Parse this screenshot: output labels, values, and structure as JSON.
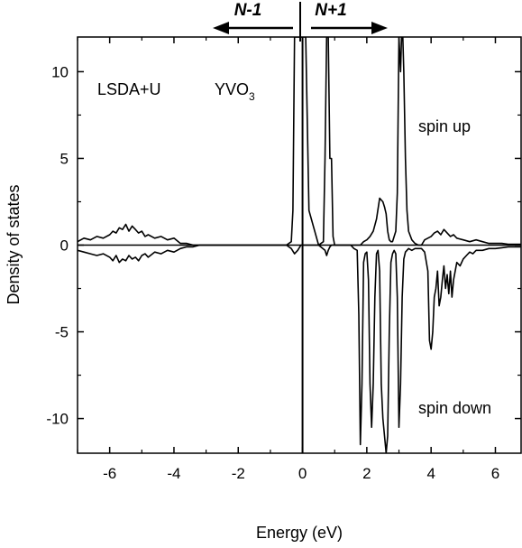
{
  "chart_data": {
    "type": "line",
    "xlabel": "Energy (eV)",
    "ylabel": "Density of states",
    "xlim": [
      -7,
      6.8
    ],
    "ylim": [
      -12,
      12
    ],
    "x_ticks": [
      -6,
      -4,
      -2,
      0,
      2,
      4,
      6
    ],
    "y_ticks": [
      -10,
      -5,
      0,
      5,
      10
    ],
    "x_tick_labels": [
      "-6",
      "-4",
      "-2",
      "0",
      "2",
      "4",
      "6"
    ],
    "y_tick_labels": [
      "-10",
      "-5",
      "0",
      "5",
      "10"
    ],
    "fermi_level": 0,
    "annotations": {
      "method": "LSDA+U",
      "compound": "YVO",
      "compound_subscript": "3",
      "spin_up": "spin up",
      "spin_down": "spin down"
    },
    "header": {
      "left": "N-1",
      "right": "N+1"
    },
    "series": [
      {
        "x": [
          -7.0,
          -6.8,
          -6.6,
          -6.4,
          -6.2,
          -6.0,
          -5.9,
          -5.8,
          -5.7,
          -5.6,
          -5.5,
          -5.4,
          -5.3,
          -5.2,
          -5.1,
          -5.0,
          -4.9,
          -4.8,
          -4.6,
          -4.4,
          -4.2,
          -4.0,
          -3.8,
          -3.6,
          -3.4,
          -3.2,
          -3.0,
          -2.5,
          -2.0,
          -1.0,
          -0.5,
          -0.35,
          -0.3,
          -0.25,
          -0.2,
          -0.1,
          0.0,
          0.1,
          0.2,
          0.5,
          0.65,
          0.7,
          0.75,
          0.8,
          0.85,
          0.9,
          0.95,
          1.0,
          1.05,
          1.1,
          1.5,
          1.8,
          1.9,
          2.0,
          2.1,
          2.2,
          2.3,
          2.4,
          2.5,
          2.55,
          2.6,
          2.65,
          2.7,
          2.75,
          2.8,
          2.9,
          2.95,
          3.0,
          3.05,
          3.08,
          3.1,
          3.12,
          3.15,
          3.2,
          3.25,
          3.3,
          3.4,
          3.5,
          3.6,
          3.7,
          3.8,
          3.9,
          4.0,
          4.1,
          4.2,
          4.3,
          4.4,
          4.5,
          4.6,
          4.7,
          4.8,
          5.0,
          5.2,
          5.4,
          5.6,
          5.8,
          6.0,
          6.2,
          6.4,
          6.6,
          6.8
        ],
        "y": [
          0.2,
          0.4,
          0.3,
          0.5,
          0.4,
          0.6,
          0.8,
          0.7,
          1.0,
          0.9,
          1.2,
          0.8,
          1.1,
          0.9,
          0.7,
          0.8,
          0.5,
          0.6,
          0.4,
          0.5,
          0.3,
          0.4,
          0.1,
          0.1,
          0.0,
          0.0,
          0.0,
          0.0,
          0.0,
          0.0,
          0.0,
          0.2,
          2.0,
          12.0,
          12.0,
          12.0,
          12.0,
          12.0,
          2.0,
          0.0,
          0.2,
          5.0,
          12.0,
          12.0,
          5.0,
          5.0,
          0.5,
          0.0,
          0.0,
          0.0,
          0.0,
          0.0,
          0.2,
          0.3,
          0.5,
          0.8,
          1.5,
          2.7,
          2.5,
          2.2,
          1.8,
          0.8,
          0.3,
          0.2,
          0.2,
          0.8,
          3.0,
          12.0,
          10.0,
          12.0,
          12.0,
          12.0,
          10.0,
          5.0,
          2.0,
          0.8,
          0.3,
          0.1,
          0.0,
          0.0,
          0.3,
          0.4,
          0.5,
          0.7,
          0.8,
          0.6,
          0.9,
          0.7,
          0.5,
          0.6,
          0.4,
          0.3,
          0.2,
          0.3,
          0.2,
          0.1,
          0.1,
          0.1,
          0.05,
          0.05,
          0.05
        ]
      },
      {
        "x": [
          -7.0,
          -6.8,
          -6.6,
          -6.4,
          -6.2,
          -6.0,
          -5.9,
          -5.8,
          -5.7,
          -5.6,
          -5.5,
          -5.4,
          -5.3,
          -5.2,
          -5.1,
          -5.0,
          -4.9,
          -4.8,
          -4.6,
          -4.4,
          -4.2,
          -4.0,
          -3.8,
          -3.6,
          -3.4,
          -3.2,
          -3.0,
          -2.5,
          -2.0,
          -1.0,
          -0.5,
          -0.35,
          -0.25,
          -0.15,
          -0.05,
          0.0,
          0.5,
          0.7,
          0.75,
          0.8,
          0.85,
          0.9,
          1.0,
          1.5,
          1.6,
          1.7,
          1.75,
          1.8,
          1.85,
          1.9,
          1.95,
          2.0,
          2.05,
          2.1,
          2.15,
          2.2,
          2.25,
          2.3,
          2.35,
          2.4,
          2.45,
          2.5,
          2.55,
          2.6,
          2.65,
          2.7,
          2.75,
          2.8,
          2.85,
          2.9,
          2.95,
          3.0,
          3.05,
          3.1,
          3.15,
          3.2,
          3.3,
          3.4,
          3.5,
          3.7,
          3.8,
          3.9,
          3.95,
          4.0,
          4.05,
          4.1,
          4.15,
          4.2,
          4.25,
          4.3,
          4.35,
          4.4,
          4.45,
          4.5,
          4.55,
          4.6,
          4.65,
          4.7,
          4.75,
          4.8,
          4.9,
          5.0,
          5.1,
          5.2,
          5.3,
          5.4,
          5.6,
          5.8,
          6.0,
          6.2,
          6.4,
          6.6,
          6.8
        ],
        "y": [
          -0.3,
          -0.4,
          -0.5,
          -0.6,
          -0.5,
          -0.7,
          -0.9,
          -0.6,
          -1.0,
          -0.8,
          -0.9,
          -0.6,
          -0.8,
          -0.7,
          -0.9,
          -0.6,
          -0.5,
          -0.7,
          -0.4,
          -0.5,
          -0.3,
          -0.4,
          -0.2,
          -0.1,
          -0.1,
          0.0,
          0.0,
          0.0,
          0.0,
          0.0,
          0.0,
          -0.2,
          -0.5,
          -0.3,
          0.0,
          0.0,
          0.0,
          -0.3,
          -0.6,
          -0.3,
          -0.1,
          0.0,
          0.0,
          0.0,
          -0.2,
          -0.3,
          -4.0,
          -11.5,
          -8.0,
          -1.0,
          -0.5,
          -0.4,
          -2.0,
          -8.0,
          -10.5,
          -8.0,
          -3.0,
          -0.5,
          -0.3,
          -1.5,
          -8.0,
          -10.0,
          -11.0,
          -12.0,
          -11.0,
          -5.0,
          -1.0,
          -0.5,
          -0.3,
          -0.5,
          -3.0,
          -10.5,
          -8.0,
          -3.0,
          -0.8,
          -0.4,
          -0.2,
          -0.3,
          -0.2,
          -0.2,
          -0.4,
          -1.5,
          -5.5,
          -6.0,
          -5.0,
          -3.0,
          -2.5,
          -1.5,
          -3.5,
          -3.0,
          -2.0,
          -1.2,
          -2.5,
          -1.7,
          -2.8,
          -1.5,
          -3.0,
          -2.0,
          -1.5,
          -1.0,
          -1.2,
          -0.8,
          -0.6,
          -0.4,
          -0.5,
          -0.3,
          -0.3,
          -0.2,
          -0.2,
          -0.15,
          -0.1,
          -0.1,
          -0.1
        ]
      }
    ]
  }
}
